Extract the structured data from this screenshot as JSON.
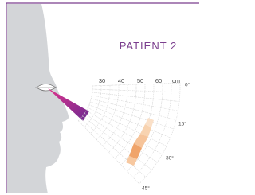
{
  "title": "PATIENT 2",
  "distance_labels": [
    "30",
    "40",
    "50",
    "60",
    "cm"
  ],
  "angle_labels": [
    "0°",
    "15°",
    "30°",
    "45°"
  ]
}
